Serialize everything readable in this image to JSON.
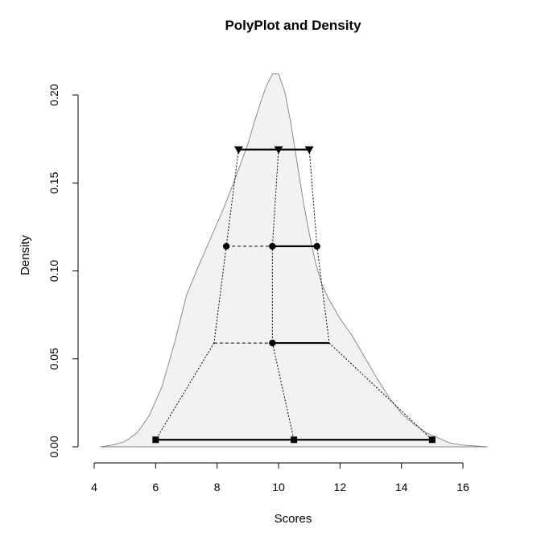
{
  "chart_data": {
    "type": "density-polyplot",
    "title": "PolyPlot and Density",
    "xlabel": "Scores",
    "ylabel": "Density",
    "xlim": [
      4,
      16
    ],
    "ylim": [
      0,
      0.2
    ],
    "x_ticks": [
      4,
      6,
      8,
      10,
      12,
      14,
      16
    ],
    "y_ticks": [
      0.0,
      0.05,
      0.1,
      0.15,
      0.2
    ],
    "x_tick_labels": [
      "4",
      "6",
      "8",
      "10",
      "12",
      "14",
      "16"
    ],
    "y_tick_labels": [
      "0.00",
      "0.05",
      "0.10",
      "0.15",
      "0.20"
    ],
    "density_curve": {
      "x": [
        4.2,
        4.6,
        5.0,
        5.4,
        5.8,
        6.2,
        6.6,
        7.0,
        7.4,
        7.8,
        8.2,
        8.6,
        9.0,
        9.2,
        9.4,
        9.6,
        9.8,
        10.0,
        10.2,
        10.4,
        10.6,
        10.8,
        11.0,
        11.2,
        11.4,
        11.6,
        12.0,
        12.4,
        12.8,
        13.2,
        13.6,
        14.0,
        14.4,
        14.8,
        15.2,
        15.6,
        16.0,
        16.4,
        16.8
      ],
      "y": [
        0.0,
        0.001,
        0.003,
        0.008,
        0.018,
        0.034,
        0.058,
        0.086,
        0.103,
        0.119,
        0.135,
        0.153,
        0.172,
        0.184,
        0.195,
        0.205,
        0.212,
        0.212,
        0.202,
        0.184,
        0.162,
        0.14,
        0.121,
        0.105,
        0.093,
        0.085,
        0.073,
        0.063,
        0.051,
        0.039,
        0.028,
        0.019,
        0.013,
        0.008,
        0.005,
        0.002,
        0.001,
        0.0005,
        0.0
      ],
      "fill": "#f2f2f2",
      "stroke": "#808080"
    },
    "levels": [
      {
        "y": 0.169,
        "x": [
          8.7,
          10.0,
          11.0
        ],
        "marker": "triangle-down"
      },
      {
        "y": 0.114,
        "x": [
          8.3,
          9.8,
          11.25
        ],
        "marker": "circle",
        "dashed_left": true
      },
      {
        "y": 0.059,
        "x": [
          7.9,
          9.8,
          11.65
        ],
        "marker": "circle",
        "dashed_left": true,
        "marked_points": [
          1
        ]
      },
      {
        "y": 0.004,
        "x": [
          6.0,
          10.5,
          15.0
        ],
        "marker": "square"
      }
    ]
  }
}
